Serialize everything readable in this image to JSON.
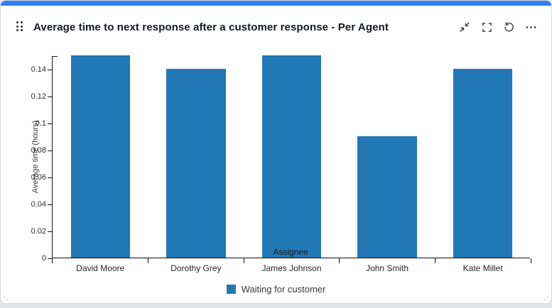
{
  "widget": {
    "accent_color": "#2f80f7",
    "title": "Average time to next response after a customer response - Per Agent",
    "actions": {
      "collapse": "collapse",
      "fullscreen": "fullscreen",
      "refresh": "refresh",
      "more": "more options"
    }
  },
  "chart_data": {
    "type": "bar",
    "title": "Average time to next response after a customer response - Per Agent",
    "categories": [
      "David Moore",
      "Dorothy Grey",
      "James Johnson",
      "John Smith",
      "Kate Millet"
    ],
    "series": [
      {
        "name": "Waiting for customer",
        "color": "#2278b5",
        "values": [
          0.15,
          0.14,
          0.15,
          0.09,
          0.14
        ]
      }
    ],
    "xlabel": "Assignee",
    "ylabel": "Average time (hours)",
    "ylim": [
      0,
      0.15
    ],
    "yticks": [
      0,
      0.02,
      0.04,
      0.06,
      0.08,
      0.1,
      0.12,
      0.14
    ],
    "ytick_labels": [
      "0",
      "0.02",
      "0.04",
      "0.06",
      "0.08",
      "0.1",
      "0.12",
      "0.14"
    ],
    "grid": false,
    "legend_position": "bottom",
    "bar_width_fraction": 0.62
  }
}
